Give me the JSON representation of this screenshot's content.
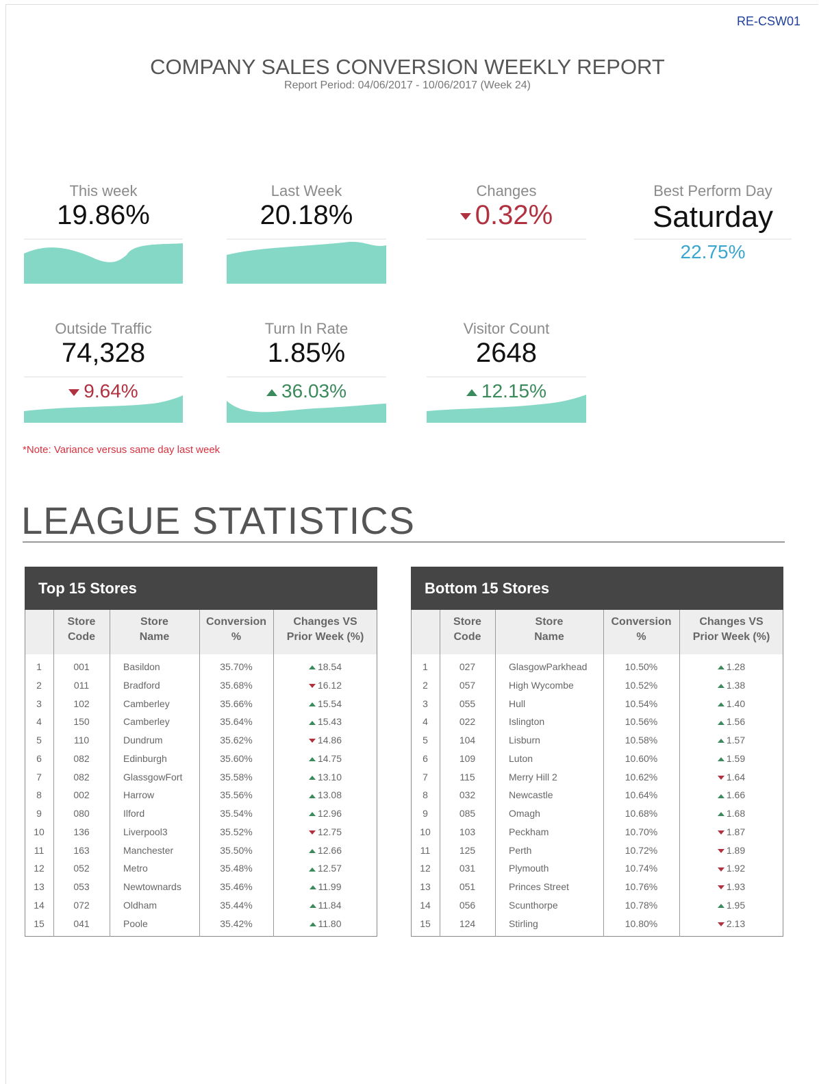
{
  "header": {
    "code": "RE-CSW01",
    "title": "COMPANY SALES CONVERSION WEEKLY REPORT",
    "subtitle": "Report Period: 04/06/2017 - 10/06/2017 (Week 24)"
  },
  "kpis": [
    {
      "label": "This week",
      "value": "19.86%"
    },
    {
      "label": "Last Week",
      "value": "20.18%"
    },
    {
      "label": "Changes",
      "value": "0.32%",
      "trend": "down"
    },
    {
      "label": "Best Perform Day",
      "value": "Saturday",
      "detail": "22.75%"
    },
    {
      "label": "Outside Traffic",
      "value": "74,328",
      "change": "9.64%",
      "trend": "down"
    },
    {
      "label": "Turn In Rate",
      "value": "1.85%",
      "change": "36.03%",
      "trend": "up"
    },
    {
      "label": "Visitor Count",
      "value": "2648",
      "change": "12.15%",
      "trend": "up"
    }
  ],
  "note": "*Note: Variance versus same day last week",
  "section_title": "LEAGUE STATISTICS",
  "tables": [
    {
      "title": "Top 15 Stores",
      "headers": [
        "Store\nCode",
        "Store\nName",
        "Conversion\n%",
        "Changes VS\nPrior Week (%)"
      ],
      "rows": [
        [
          "1",
          "001",
          "Basildon",
          "35.70%",
          "18.54"
        ],
        [
          "2",
          "011",
          "Bradford",
          "35.68%",
          "16.12"
        ],
        [
          "3",
          "102",
          "Camberley",
          "35.66%",
          "15.54"
        ],
        [
          "4",
          "150",
          "Camberley",
          "35.64%",
          "15.43"
        ],
        [
          "5",
          "110",
          "Dundrum",
          "35.62%",
          "14.86"
        ],
        [
          "6",
          "082",
          "Edinburgh",
          "35.60%",
          "14.75"
        ],
        [
          "7",
          "082",
          "GlassgowFort",
          "35.58%",
          "13.10"
        ],
        [
          "8",
          "002",
          "Harrow",
          "35.56%",
          "13.08"
        ],
        [
          "9",
          "080",
          "Ilford",
          "35.54%",
          "12.96"
        ],
        [
          "10",
          "136",
          "Liverpool3",
          "35.52%",
          "12.75"
        ],
        [
          "11",
          "163",
          "Manchester",
          "35.50%",
          "12.66"
        ],
        [
          "12",
          "052",
          "Metro",
          "35.48%",
          "12.57"
        ],
        [
          "13",
          "053",
          "Newtownards",
          "35.46%",
          "11.99"
        ],
        [
          "14",
          "072",
          "Oldham",
          "35.44%",
          "11.84"
        ],
        [
          "15",
          "041",
          "Poole",
          "35.42%",
          "11.80"
        ]
      ],
      "trends": [
        "up",
        "down",
        "up",
        "up",
        "down",
        "up",
        "up",
        "up",
        "up",
        "down",
        "up",
        "up",
        "up",
        "up",
        "up"
      ]
    },
    {
      "title": "Bottom 15 Stores",
      "headers": [
        "Store\nCode",
        "Store\nName",
        "Conversion\n%",
        "Changes VS\nPrior Week (%)"
      ],
      "rows": [
        [
          "1",
          "027",
          "GlasgowParkhead",
          "10.50%",
          "1.28"
        ],
        [
          "2",
          "057",
          "High Wycombe",
          "10.52%",
          "1.38"
        ],
        [
          "3",
          "055",
          "Hull",
          "10.54%",
          "1.40"
        ],
        [
          "4",
          "022",
          "Islington",
          "10.56%",
          "1.56"
        ],
        [
          "5",
          "104",
          "Lisburn",
          "10.58%",
          "1.57"
        ],
        [
          "6",
          "109",
          "Luton",
          "10.60%",
          "1.59"
        ],
        [
          "7",
          "115",
          "Merry Hill 2",
          "10.62%",
          "1.64"
        ],
        [
          "8",
          "032",
          "Newcastle",
          "10.64%",
          "1.66"
        ],
        [
          "9",
          "085",
          "Omagh",
          "10.68%",
          "1.68"
        ],
        [
          "10",
          "103",
          "Peckham",
          "10.70%",
          "1.87"
        ],
        [
          "11",
          "125",
          "Perth",
          "10.72%",
          "1.89"
        ],
        [
          "12",
          "031",
          "Plymouth",
          "10.74%",
          "1.92"
        ],
        [
          "13",
          "051",
          "Princes Street",
          "10.76%",
          "1.93"
        ],
        [
          "14",
          "056",
          "Scunthorpe",
          "10.78%",
          "1.95"
        ],
        [
          "15",
          "124",
          "Stirling",
          "10.80%",
          "2.13"
        ]
      ],
      "trends": [
        "up",
        "up",
        "up",
        "up",
        "up",
        "up",
        "down",
        "up",
        "up",
        "down",
        "down",
        "down",
        "down",
        "up",
        "down"
      ]
    }
  ]
}
